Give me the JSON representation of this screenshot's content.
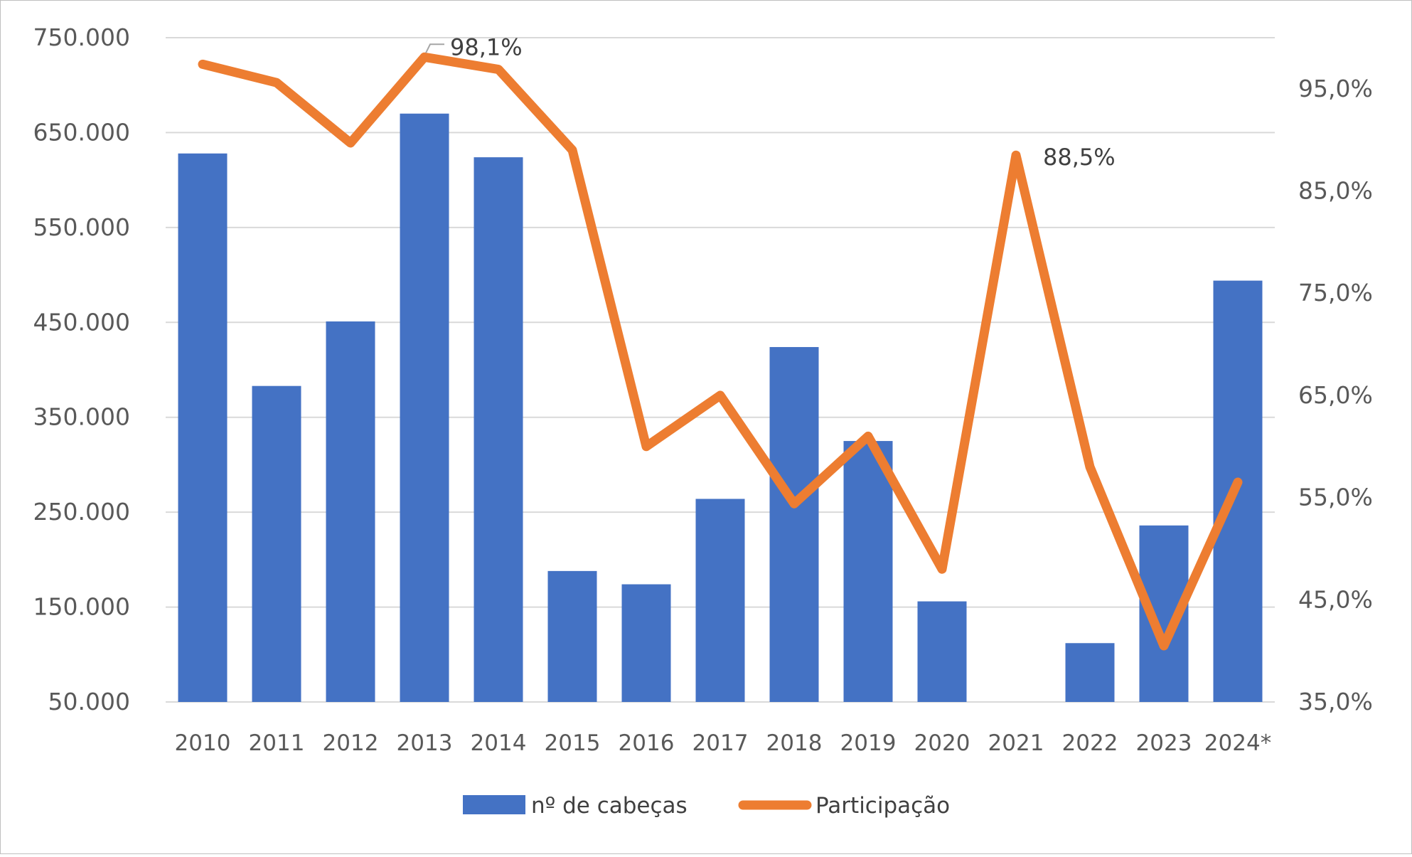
{
  "chart_data": {
    "type": "bar+line",
    "categories": [
      "2010",
      "2011",
      "2012",
      "2013",
      "2014",
      "2015",
      "2016",
      "2017",
      "2018",
      "2019",
      "2020",
      "2021",
      "2022",
      "2023",
      "2024*"
    ],
    "series": [
      {
        "name": "nº de cabeças",
        "type": "bar",
        "axis": "left",
        "color": "#4472C4",
        "values": [
          628000,
          383000,
          451000,
          670000,
          624000,
          188000,
          174000,
          264000,
          424000,
          325000,
          156000,
          4000,
          112000,
          236000,
          494000
        ]
      },
      {
        "name": "Participação",
        "type": "line",
        "axis": "right",
        "color": "#ED7D31",
        "values": [
          97.4,
          95.6,
          89.7,
          98.1,
          96.9,
          89.0,
          60.0,
          65.0,
          54.4,
          61.0,
          48.0,
          88.5,
          58.0,
          40.5,
          56.5
        ]
      }
    ],
    "y_left": {
      "ylim": [
        50000,
        750000
      ],
      "ticks": [
        50000,
        150000,
        250000,
        350000,
        450000,
        550000,
        650000,
        750000
      ],
      "tick_labels": [
        "50.000",
        "150.000",
        "250.000",
        "350.000",
        "450.000",
        "550.000",
        "650.000",
        "750.000"
      ]
    },
    "y_right": {
      "ylim": [
        35,
        100
      ],
      "ticks": [
        35,
        45,
        55,
        65,
        75,
        85,
        95
      ],
      "tick_labels": [
        "35,0%",
        "45,0%",
        "55,0%",
        "65,0%",
        "75,0%",
        "85,0%",
        "95,0%"
      ]
    },
    "data_labels": [
      {
        "series": "Participação",
        "category": "2013",
        "text": "98,1%"
      },
      {
        "series": "Participação",
        "category": "2021",
        "text": "88,5%"
      }
    ],
    "grid": true,
    "legend": "bottom"
  }
}
